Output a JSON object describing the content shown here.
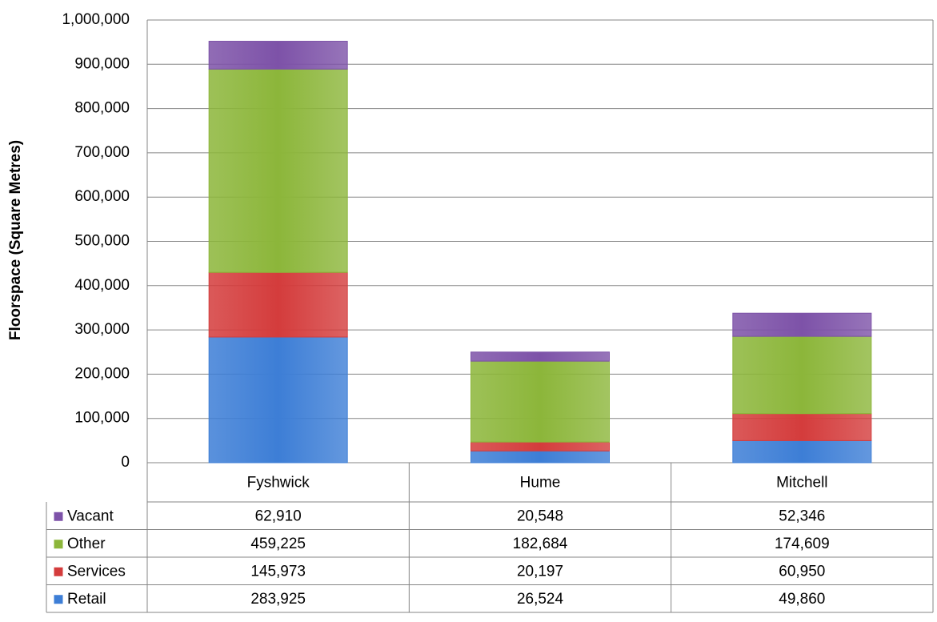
{
  "chart_data": {
    "type": "stacked_bar",
    "y_label": "Floorspace (Square Metres)",
    "categories": [
      "Fyshwick",
      "Hume",
      "Mitchell"
    ],
    "series": [
      {
        "name": "Retail",
        "color": "#3d7ed6",
        "values": [
          283925,
          26524,
          49860
        ],
        "value_labels": [
          "283,925",
          "26,524",
          "49,860"
        ]
      },
      {
        "name": "Services",
        "color": "#d43c3c",
        "values": [
          145973,
          20197,
          60950
        ],
        "value_labels": [
          "145,973",
          "20,197",
          "60,950"
        ]
      },
      {
        "name": "Other",
        "color": "#8cb63a",
        "values": [
          459225,
          182684,
          174609
        ],
        "value_labels": [
          "459,225",
          "182,684",
          "174,609"
        ]
      },
      {
        "name": "Vacant",
        "color": "#7d52a8",
        "values": [
          62910,
          20548,
          52346
        ],
        "value_labels": [
          "62,910",
          "20,548",
          "52,346"
        ]
      }
    ],
    "ylim": [
      0,
      1000000
    ],
    "yticks": [
      0,
      {
        "value": 100000,
        "label": "100,000"
      },
      {
        "value": 200000,
        "label": "200,000"
      },
      {
        "value": 300000,
        "label": "300,000"
      },
      {
        "value": 400000,
        "label": "400,000"
      },
      {
        "value": 500000,
        "label": "500,000"
      },
      {
        "value": 600000,
        "label": "600,000"
      },
      {
        "value": 700000,
        "label": "700,000"
      },
      {
        "value": 800000,
        "label": "800,000"
      },
      {
        "value": 900000,
        "label": "900,000"
      },
      {
        "value": 1000000,
        "label": "1,000,000"
      }
    ],
    "grid": true,
    "legend": "table"
  }
}
